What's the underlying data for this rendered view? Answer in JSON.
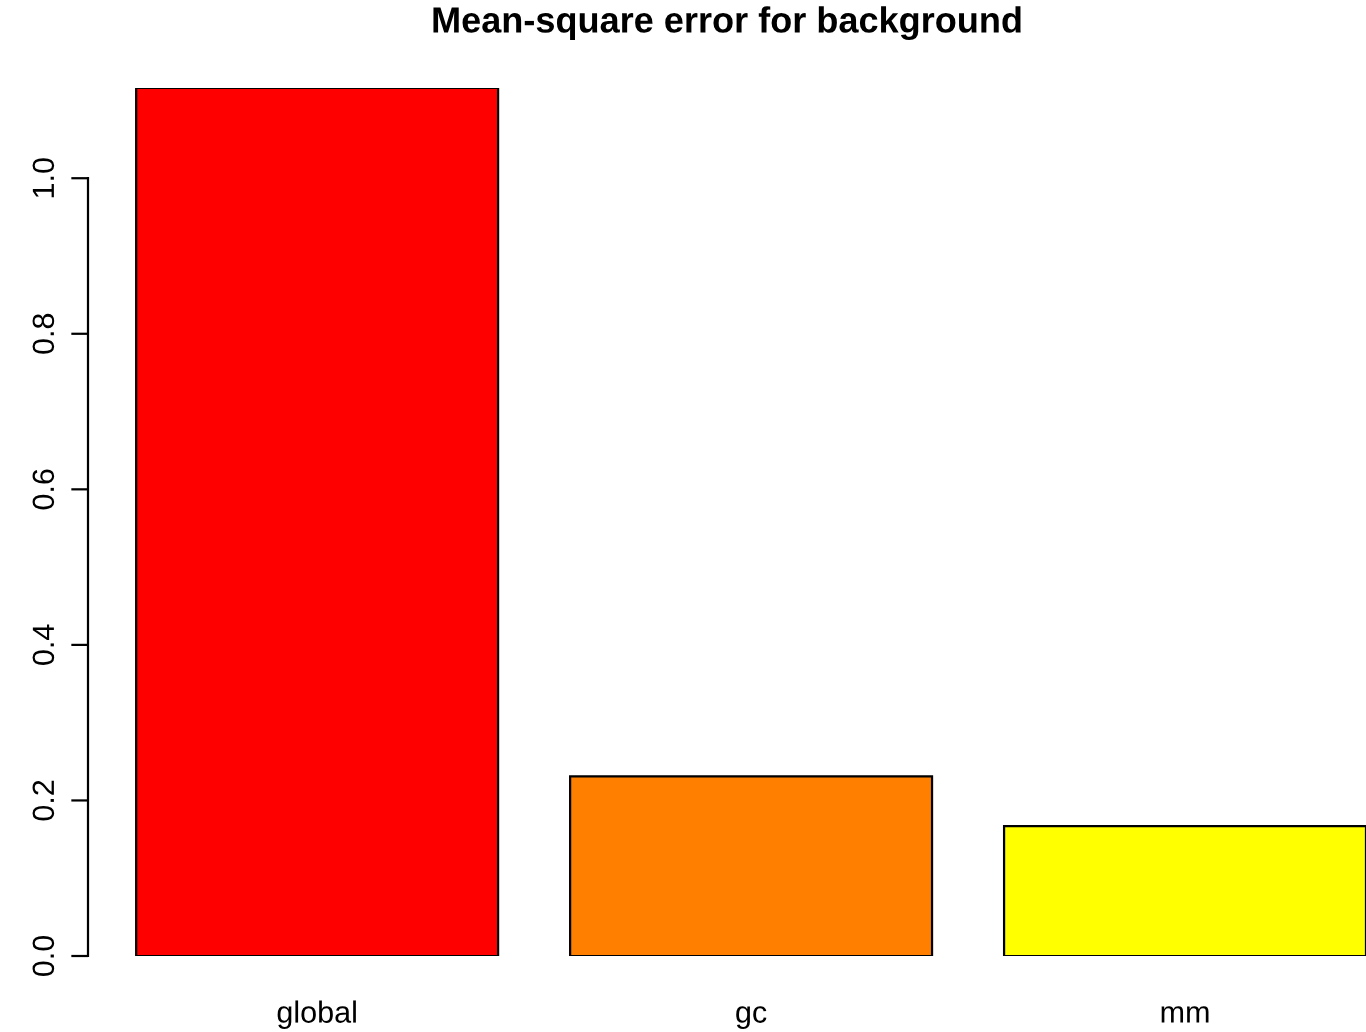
{
  "chart_data": {
    "type": "bar",
    "title": "Mean-square error for background",
    "categories": [
      "global",
      "gc",
      "mm"
    ],
    "values": [
      1.116,
      0.231,
      0.167
    ],
    "colors": [
      "#ff0000",
      "#ff7f00",
      "#ffff00"
    ],
    "ylim": [
      0,
      1.116
    ],
    "yticks": [
      {
        "value": 0,
        "label": "0.0"
      },
      {
        "value": 0.2,
        "label": "0.2"
      },
      {
        "value": 0.4,
        "label": "0.4"
      },
      {
        "value": 0.6,
        "label": "0.6"
      },
      {
        "value": 0.8,
        "label": "0.8"
      },
      {
        "value": 1.0,
        "label": "1.0"
      }
    ],
    "grid": false
  }
}
